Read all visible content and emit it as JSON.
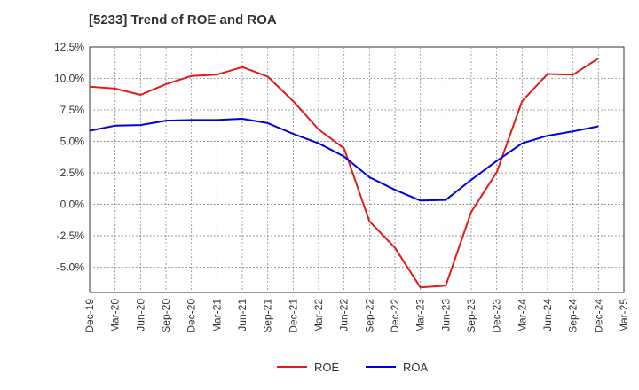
{
  "chart_data": {
    "type": "line",
    "title": "[5233]  Trend of ROE and ROA",
    "xlabel": "",
    "ylabel": "",
    "x": [
      "Dec-19",
      "Mar-20",
      "Jun-20",
      "Sep-20",
      "Dec-20",
      "Mar-21",
      "Jun-21",
      "Sep-21",
      "Dec-21",
      "Mar-22",
      "Jun-22",
      "Sep-22",
      "Dec-22",
      "Mar-23",
      "Jun-23",
      "Sep-23",
      "Dec-23",
      "Mar-24",
      "Jun-24",
      "Sep-24",
      "Dec-24",
      "Mar-25"
    ],
    "ylim": [
      -7.0,
      12.5
    ],
    "yticks": [
      12.5,
      10.0,
      7.5,
      5.0,
      2.5,
      0.0,
      -2.5,
      -5.0
    ],
    "ytick_labels": [
      "12.5%",
      "10.0%",
      "7.5%",
      "5.0%",
      "2.5%",
      "0.0%",
      "-2.5%",
      "-5.0%"
    ],
    "grid": true,
    "legend_position": "bottom-center",
    "series": [
      {
        "name": "ROE",
        "color": "#e31a1c",
        "values": [
          9.35,
          9.2,
          8.7,
          9.55,
          10.2,
          10.3,
          10.9,
          10.15,
          8.2,
          5.95,
          4.45,
          -1.35,
          -3.45,
          -6.6,
          -6.45,
          -0.6,
          2.55,
          8.2,
          10.35,
          10.3,
          11.6,
          null
        ]
      },
      {
        "name": "ROA",
        "color": "#0000dd",
        "values": [
          5.85,
          6.25,
          6.3,
          6.65,
          6.7,
          6.7,
          6.8,
          6.45,
          5.6,
          4.85,
          3.8,
          2.15,
          1.15,
          0.3,
          0.35,
          1.95,
          3.45,
          4.85,
          5.45,
          5.8,
          6.2,
          null
        ]
      }
    ]
  }
}
